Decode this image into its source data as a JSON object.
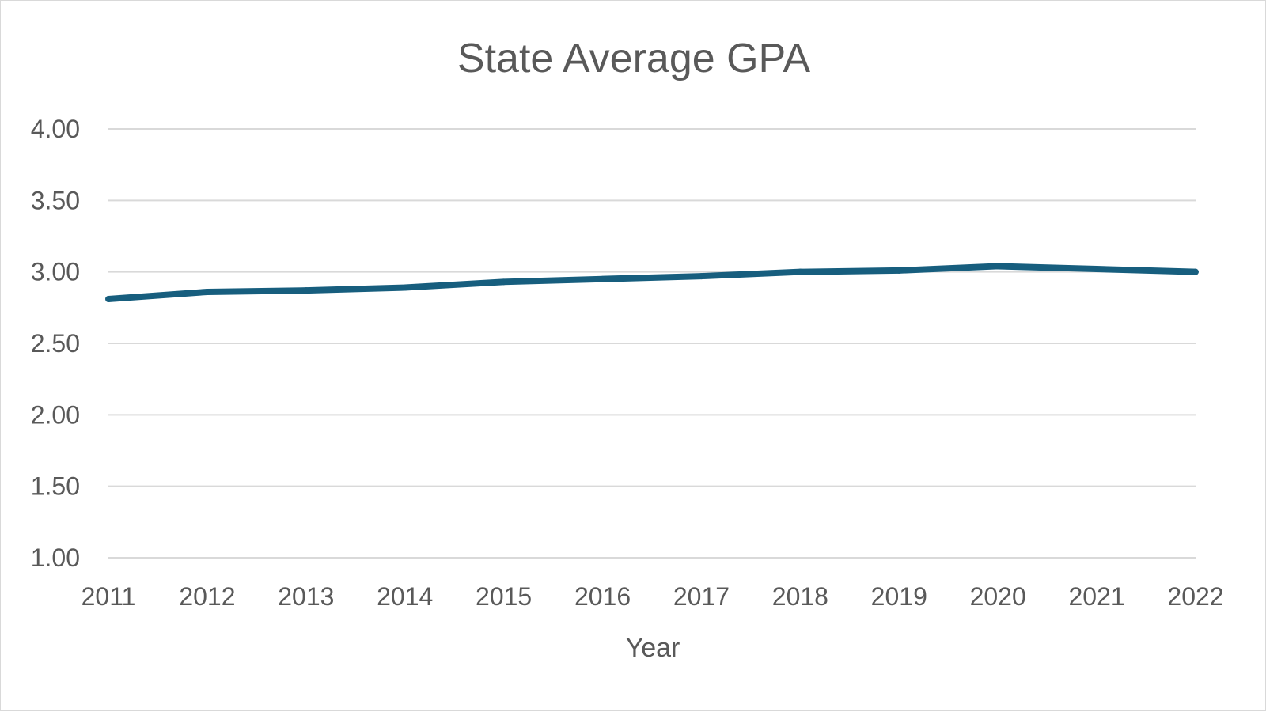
{
  "chart_data": {
    "type": "line",
    "title": "State Average GPA",
    "xlabel": "Year",
    "ylabel": "",
    "categories": [
      "2011",
      "2012",
      "2013",
      "2014",
      "2015",
      "2016",
      "2017",
      "2018",
      "2019",
      "2020",
      "2021",
      "2022"
    ],
    "series": [
      {
        "values": [
          2.81,
          2.86,
          2.87,
          2.89,
          2.93,
          2.95,
          2.97,
          3.0,
          3.01,
          3.04,
          3.02,
          3.0
        ],
        "color": "#175E7E"
      }
    ],
    "ylim": [
      1.0,
      4.0
    ],
    "yticks": [
      "1.00",
      "1.50",
      "2.00",
      "2.50",
      "3.00",
      "3.50",
      "4.00"
    ],
    "grid": true,
    "legend": "none"
  }
}
